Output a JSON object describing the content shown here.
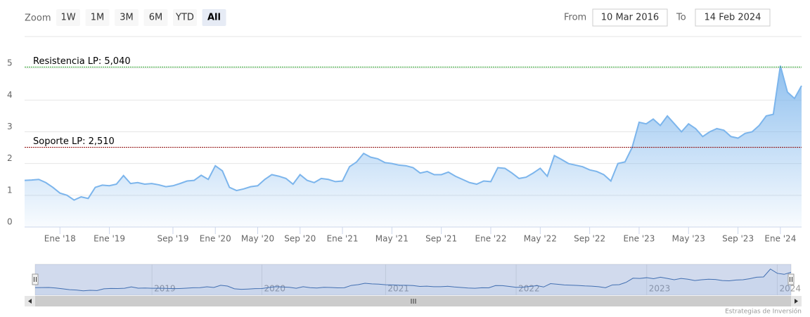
{
  "ui": {
    "zoom_label": "Zoom",
    "zoom_buttons": [
      "1W",
      "1M",
      "3M",
      "6M",
      "YTD",
      "All"
    ],
    "selected": "All",
    "from_label": "From",
    "from": "10 Mar 2016",
    "to_label": "To",
    "to": "14 Feb 2024",
    "credits": "Estrategias de Inversión"
  },
  "chart_data": {
    "type": "area",
    "categories": [
      null,
      null,
      null,
      null,
      null,
      "Ene '18",
      null,
      null,
      null,
      null,
      null,
      null,
      "Ene '19",
      null,
      null,
      null,
      null,
      null,
      null,
      null,
      null,
      "Sep '19",
      null,
      null,
      null,
      null,
      null,
      "Ene '20",
      null,
      null,
      null,
      null,
      null,
      "May '20",
      null,
      null,
      null,
      null,
      null,
      "Sep '20",
      null,
      null,
      null,
      null,
      null,
      "Ene '21",
      null,
      null,
      null,
      null,
      null,
      null,
      "May '21",
      null,
      null,
      null,
      null,
      null,
      null,
      "Sep '21",
      null,
      null,
      null,
      null,
      null,
      null,
      "Ene '22",
      null,
      null,
      null,
      null,
      null,
      null,
      "May '22",
      null,
      null,
      null,
      null,
      null,
      null,
      "Sep '22",
      null,
      null,
      null,
      null,
      null,
      null,
      "Ene '23",
      null,
      null,
      null,
      null,
      null,
      null,
      "May '23",
      null,
      null,
      null,
      null,
      null,
      null,
      "Sep '23",
      null,
      null,
      null,
      null,
      null,
      "Ene '24",
      null,
      null,
      null
    ],
    "series": [
      {
        "color": "#7cb5ec",
        "values": [
          1.47,
          1.48,
          1.5,
          1.4,
          1.25,
          1.07,
          1.0,
          0.85,
          0.95,
          0.9,
          1.25,
          1.32,
          1.3,
          1.35,
          1.62,
          1.37,
          1.4,
          1.35,
          1.37,
          1.33,
          1.27,
          1.3,
          1.37,
          1.45,
          1.47,
          1.63,
          1.5,
          1.93,
          1.77,
          1.25,
          1.15,
          1.2,
          1.27,
          1.3,
          1.5,
          1.65,
          1.6,
          1.53,
          1.35,
          1.65,
          1.47,
          1.4,
          1.53,
          1.5,
          1.43,
          1.45,
          1.9,
          2.05,
          2.32,
          2.2,
          2.15,
          2.03,
          2.0,
          1.95,
          1.93,
          1.87,
          1.7,
          1.75,
          1.65,
          1.65,
          1.73,
          1.6,
          1.5,
          1.4,
          1.35,
          1.45,
          1.43,
          1.87,
          1.85,
          1.7,
          1.53,
          1.57,
          1.7,
          1.85,
          1.6,
          2.25,
          2.13,
          2.0,
          1.95,
          1.9,
          1.8,
          1.75,
          1.65,
          1.45,
          2.0,
          2.05,
          2.5,
          3.3,
          3.25,
          3.4,
          3.2,
          3.5,
          3.25,
          3.0,
          3.25,
          3.1,
          2.85,
          3.0,
          3.1,
          3.05,
          2.85,
          2.8,
          2.95,
          3.0,
          3.2,
          3.5,
          3.55,
          5.08,
          4.25,
          4.05,
          4.45
        ]
      }
    ],
    "ylim": [
      0,
      6
    ],
    "yticks": [
      0,
      1,
      2,
      3,
      4,
      5
    ],
    "grid": true,
    "plot_lines": [
      {
        "value": 5.04,
        "label": "Resistencia LP: 5,040",
        "color": "#2ca02c"
      },
      {
        "value": 2.51,
        "label": "Soporte LP: 2,510",
        "color": "#8b0000"
      }
    ],
    "navigator": {
      "xticks": [
        {
          "value": 17,
          "label": "2019"
        },
        {
          "value": 33,
          "label": "2020"
        },
        {
          "value": 51,
          "label": "2021"
        },
        {
          "value": 70,
          "label": "2022"
        },
        {
          "value": 89,
          "label": "2023"
        },
        {
          "value": 108,
          "label": "2024"
        }
      ]
    }
  }
}
